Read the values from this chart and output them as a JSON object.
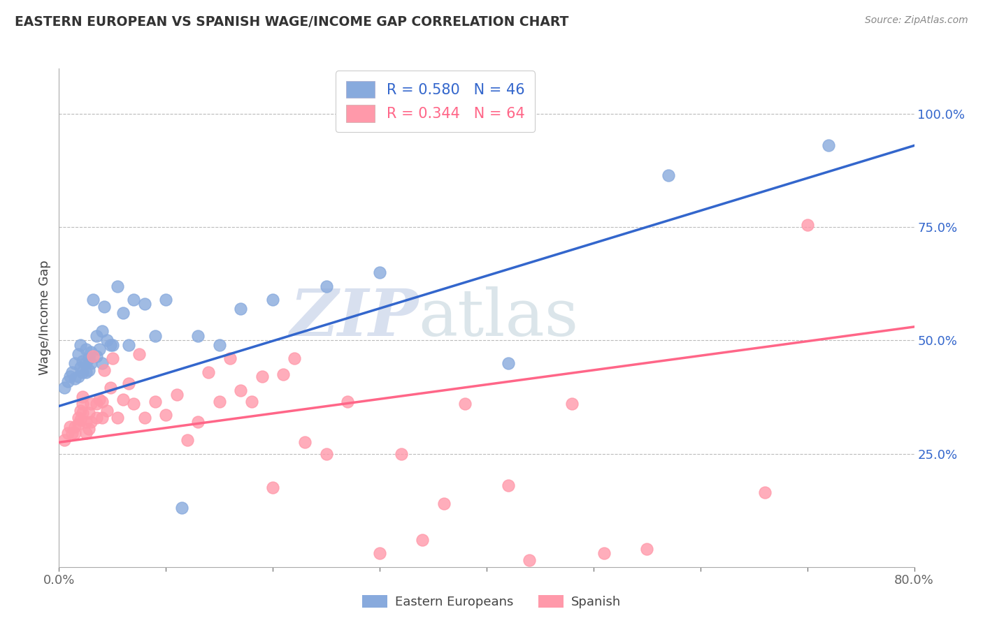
{
  "title": "EASTERN EUROPEAN VS SPANISH WAGE/INCOME GAP CORRELATION CHART",
  "source": "Source: ZipAtlas.com",
  "ylabel": "Wage/Income Gap",
  "xlim": [
    0.0,
    0.8
  ],
  "ylim": [
    0.0,
    1.1
  ],
  "right_yticks": [
    0.25,
    0.5,
    0.75,
    1.0
  ],
  "right_yticklabels": [
    "25.0%",
    "50.0%",
    "75.0%",
    "100.0%"
  ],
  "xticks": [
    0.0,
    0.1,
    0.2,
    0.3,
    0.4,
    0.5,
    0.6,
    0.7,
    0.8
  ],
  "xticklabels": [
    "0.0%",
    "",
    "",
    "",
    "",
    "",
    "",
    "",
    "80.0%"
  ],
  "legend_blue_label": "R = 0.580   N = 46",
  "legend_pink_label": "R = 0.344   N = 64",
  "blue_color": "#88AADD",
  "pink_color": "#FF99AA",
  "blue_line_color": "#3366CC",
  "pink_line_color": "#FF6688",
  "watermark_zip": "ZIP",
  "watermark_atlas": "atlas",
  "blue_scatter_x": [
    0.005,
    0.008,
    0.01,
    0.012,
    0.015,
    0.015,
    0.018,
    0.018,
    0.02,
    0.02,
    0.022,
    0.022,
    0.025,
    0.025,
    0.025,
    0.028,
    0.028,
    0.03,
    0.03,
    0.032,
    0.035,
    0.035,
    0.038,
    0.04,
    0.04,
    0.042,
    0.045,
    0.048,
    0.05,
    0.055,
    0.06,
    0.065,
    0.07,
    0.08,
    0.09,
    0.1,
    0.115,
    0.13,
    0.15,
    0.17,
    0.2,
    0.25,
    0.3,
    0.42,
    0.57,
    0.72
  ],
  "blue_scatter_y": [
    0.395,
    0.41,
    0.42,
    0.43,
    0.415,
    0.45,
    0.42,
    0.47,
    0.44,
    0.49,
    0.43,
    0.455,
    0.43,
    0.45,
    0.48,
    0.435,
    0.46,
    0.45,
    0.475,
    0.59,
    0.465,
    0.51,
    0.48,
    0.45,
    0.52,
    0.575,
    0.5,
    0.49,
    0.49,
    0.62,
    0.56,
    0.49,
    0.59,
    0.58,
    0.51,
    0.59,
    0.13,
    0.51,
    0.49,
    0.57,
    0.59,
    0.62,
    0.65,
    0.45,
    0.865,
    0.93
  ],
  "pink_scatter_x": [
    0.005,
    0.008,
    0.01,
    0.012,
    0.015,
    0.015,
    0.018,
    0.018,
    0.02,
    0.02,
    0.022,
    0.022,
    0.022,
    0.025,
    0.025,
    0.028,
    0.028,
    0.03,
    0.03,
    0.032,
    0.035,
    0.035,
    0.038,
    0.04,
    0.04,
    0.042,
    0.045,
    0.048,
    0.05,
    0.055,
    0.06,
    0.065,
    0.07,
    0.075,
    0.08,
    0.09,
    0.1,
    0.11,
    0.12,
    0.13,
    0.14,
    0.15,
    0.16,
    0.17,
    0.18,
    0.19,
    0.2,
    0.21,
    0.22,
    0.23,
    0.25,
    0.27,
    0.3,
    0.32,
    0.34,
    0.36,
    0.38,
    0.42,
    0.44,
    0.48,
    0.51,
    0.55,
    0.66,
    0.7
  ],
  "pink_scatter_y": [
    0.28,
    0.295,
    0.31,
    0.295,
    0.295,
    0.31,
    0.315,
    0.33,
    0.325,
    0.345,
    0.34,
    0.36,
    0.375,
    0.295,
    0.32,
    0.305,
    0.34,
    0.32,
    0.36,
    0.465,
    0.33,
    0.36,
    0.37,
    0.33,
    0.365,
    0.435,
    0.345,
    0.395,
    0.46,
    0.33,
    0.37,
    0.405,
    0.36,
    0.47,
    0.33,
    0.365,
    0.335,
    0.38,
    0.28,
    0.32,
    0.43,
    0.365,
    0.46,
    0.39,
    0.365,
    0.42,
    0.175,
    0.425,
    0.46,
    0.275,
    0.25,
    0.365,
    0.03,
    0.25,
    0.06,
    0.14,
    0.36,
    0.18,
    0.015,
    0.36,
    0.03,
    0.04,
    0.165,
    0.755
  ],
  "blue_trend_x": [
    0.0,
    0.8
  ],
  "blue_trend_y": [
    0.355,
    0.93
  ],
  "pink_trend_x": [
    0.0,
    0.8
  ],
  "pink_trend_y": [
    0.275,
    0.53
  ],
  "grid_color": "#BBBBBB",
  "background_color": "#FFFFFF"
}
